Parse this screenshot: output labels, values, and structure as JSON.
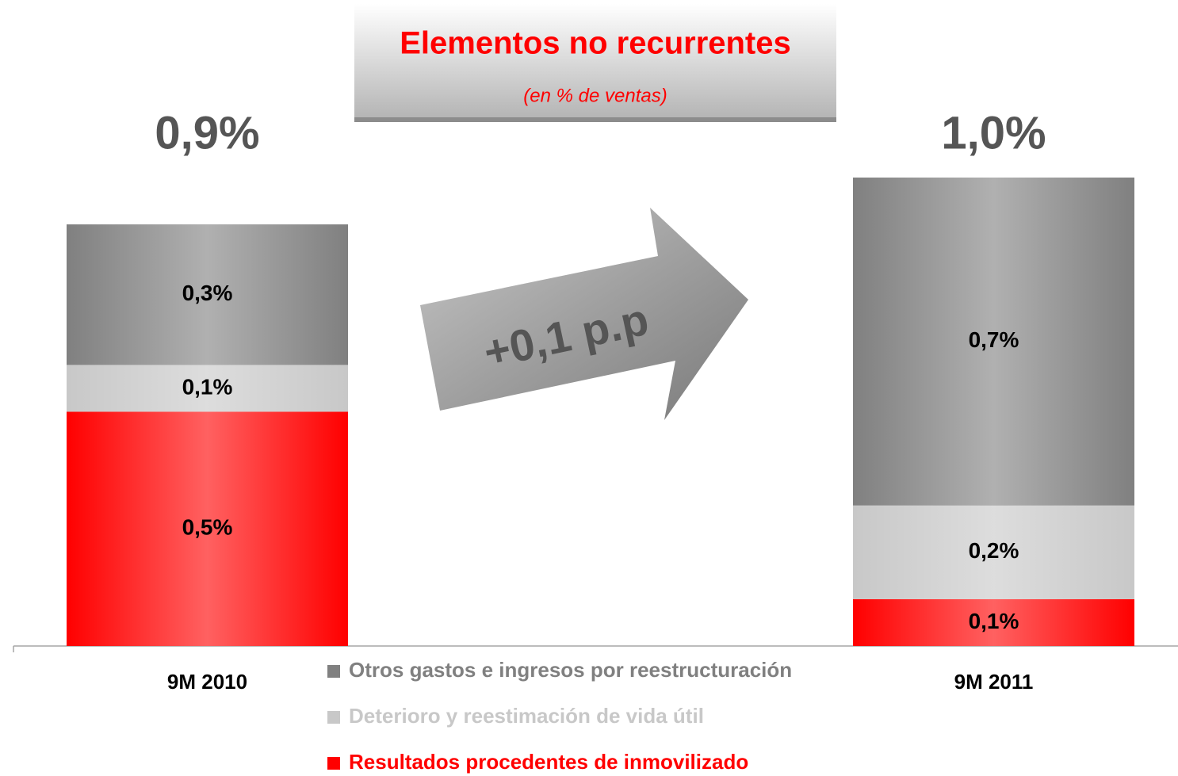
{
  "chart_data": {
    "type": "stacked-bar",
    "title": "Elementos no recurrentes",
    "subtitle": "(en % de ventas)",
    "annotation": "+0,1 p.p",
    "categories": [
      "9M 2010",
      "9M 2011"
    ],
    "series": [
      {
        "name": "Resultados procedentes de inmovilizado",
        "color": "#ff0000",
        "values": [
          0.5,
          0.1
        ],
        "value_labels": [
          "0,5%",
          "0,1%"
        ]
      },
      {
        "name": "Deterioro y reestimación de vida útil",
        "color": "#c8c8c8",
        "values": [
          0.1,
          0.2
        ],
        "value_labels": [
          "0,1%",
          "0,2%"
        ]
      },
      {
        "name": "Otros gastos e ingresos por reestructuración",
        "color": "#808080",
        "values": [
          0.3,
          0.7
        ],
        "value_labels": [
          "0,3%",
          "0,7%"
        ]
      }
    ],
    "totals": {
      "values": [
        0.9,
        1.0
      ],
      "value_labels": [
        "0,9%",
        "1,0%"
      ]
    }
  }
}
